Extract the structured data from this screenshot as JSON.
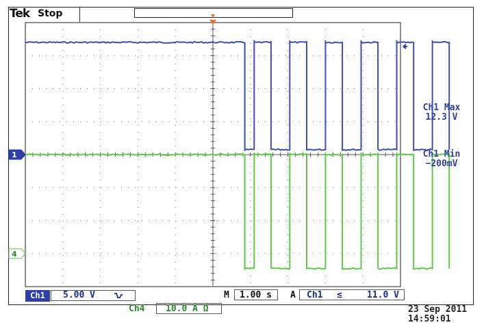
{
  "header": {
    "brand": "Tek",
    "status": "Stop"
  },
  "readouts": {
    "ch1_max_label": "Ch1 Max",
    "ch1_max_value": "12.3 V",
    "ch1_min_label": "Ch1 Min",
    "ch1_min_value": "−200mV"
  },
  "markers": {
    "ch1": "1",
    "ch4": "4"
  },
  "footer": {
    "ch1_label": "Ch1",
    "ch1_scale": "5.00 V",
    "ch4_label": "Ch4",
    "ch4_scale": "10.0 A Ω",
    "timebase_prefix": "M",
    "timebase": "1.00 s",
    "trigger_prefix": "A",
    "trigger_source": "Ch1",
    "trigger_slope": "≲",
    "trigger_level": "11.0 V",
    "date": "23 Sep  2011",
    "time": "14:59:01"
  },
  "colors": {
    "ch1": "#3a4fb0",
    "ch4": "#5fc84a",
    "grid": "#444444",
    "ch1_badge": "#2e3fa7"
  },
  "waveforms": {
    "ch1": {
      "high_level_div": 3.4,
      "low_level_div": 0.15,
      "flat_until_div": 5.85,
      "pulse_starts_div": [
        6.1,
        7.05,
        8.0,
        8.95,
        9.9,
        10.85
      ],
      "pulse_width_div": 0.45
    },
    "ch4": {
      "high_level_div": 3.0,
      "low_level_div": -0.45,
      "flat_until_div": 5.85,
      "pulse_starts_div": [
        6.1,
        7.05,
        8.0,
        8.95,
        9.9,
        10.85
      ],
      "pulse_width_div": 0.45
    }
  }
}
